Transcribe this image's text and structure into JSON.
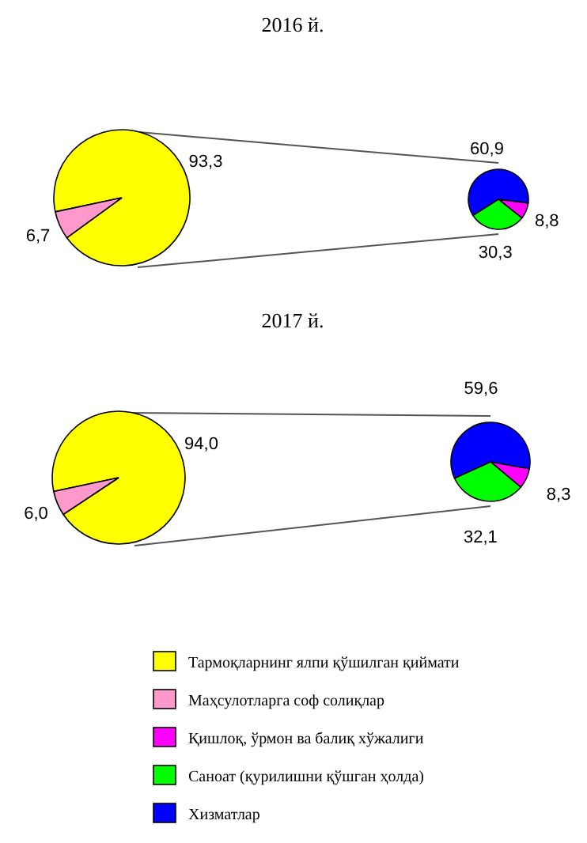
{
  "chart_data": [
    {
      "type": "pie",
      "title": "2016 й.",
      "categories": [
        "Тармоқларнинг ялпи қўшилган қиймати",
        "Маҳсулотларга соф солиқлар"
      ],
      "values": [
        93.3,
        6.7
      ],
      "colors": [
        "#ffff00",
        "#ff99cc"
      ],
      "value_labels": [
        "93,3",
        "6,7"
      ],
      "legend": "bottom"
    },
    {
      "type": "pie",
      "categories": [
        "Қишлоқ, ўрмон ва балиқ хўжалиги",
        "Саноат (қурилишни қўшган ҳолда)",
        "Хизматлар"
      ],
      "values": [
        8.8,
        30.3,
        60.9
      ],
      "colors": [
        "#ff00ff",
        "#00ff00",
        "#0000ff"
      ],
      "value_labels": [
        "8,8",
        "30,3",
        "60,9"
      ],
      "legend": "bottom"
    },
    {
      "type": "pie",
      "title": "2017 й.",
      "categories": [
        null,
        null
      ],
      "values": [
        94.0,
        6.0
      ],
      "colors": [
        "#ffff00",
        "#ff99cc"
      ],
      "value_labels": [
        "94,0",
        "6,0"
      ]
    },
    {
      "type": "pie",
      "categories": [
        null,
        null,
        null
      ],
      "values": [
        8.3,
        32.1,
        59.6
      ],
      "colors": [
        "#ff00ff",
        "#00ff00",
        "#0000ff"
      ],
      "value_labels": [
        "8,3",
        "32,1",
        "59,6"
      ]
    }
  ]
}
